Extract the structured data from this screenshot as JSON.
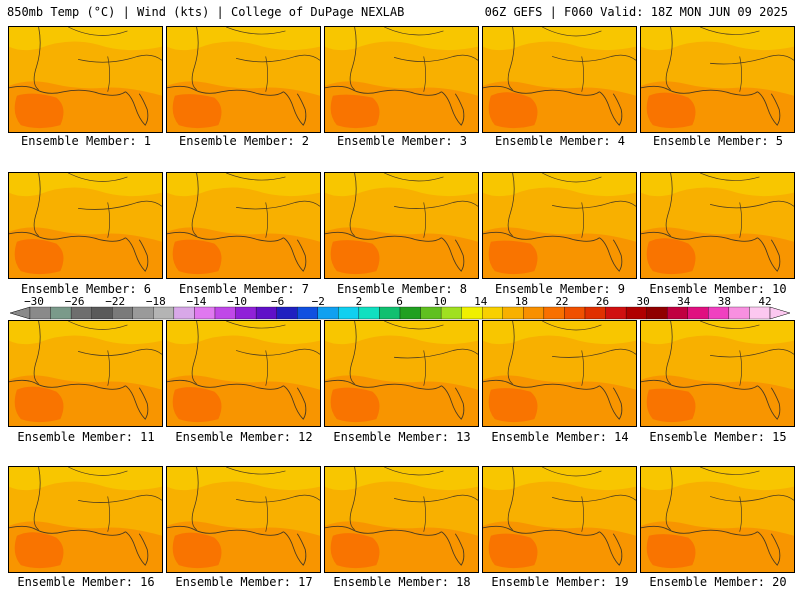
{
  "header": {
    "left": "850mb Temp (°C) | Wind (kts) | College of DuPage NEXLAB",
    "right": "06Z GEFS | F060 Valid: 18Z MON JUN 09 2025"
  },
  "colorbar": {
    "tick_labels": [
      "−30",
      "−26",
      "−22",
      "−18",
      "−14",
      "−10",
      "−6",
      "−2",
      "2",
      "6",
      "10",
      "14",
      "18",
      "22",
      "26",
      "30",
      "34",
      "38",
      "42"
    ],
    "colors": [
      "#8a8a8a",
      "#7a9a8a",
      "#6e6e6e",
      "#5a5a5a",
      "#7a7a7a",
      "#9a9a9a",
      "#b4b4b4",
      "#d8a8e8",
      "#e078f0",
      "#c048e8",
      "#9020d8",
      "#6010c8",
      "#2020c0",
      "#1050e0",
      "#10a0f0",
      "#10d0f0",
      "#10e0c0",
      "#10c070",
      "#20a020",
      "#60c020",
      "#a0e020",
      "#f0f000",
      "#f8d000",
      "#f8b000",
      "#f89000",
      "#f87000",
      "#f05000",
      "#e03000",
      "#d01010",
      "#b00000",
      "#900000",
      "#c00040",
      "#e01080",
      "#f040c0",
      "#f890e0",
      "#fcc8f0"
    ]
  },
  "members": [
    {
      "label": "Ensemble Member: 1"
    },
    {
      "label": "Ensemble Member: 2"
    },
    {
      "label": "Ensemble Member: 3"
    },
    {
      "label": "Ensemble Member: 4"
    },
    {
      "label": "Ensemble Member: 5"
    },
    {
      "label": "Ensemble Member: 6"
    },
    {
      "label": "Ensemble Member: 7"
    },
    {
      "label": "Ensemble Member: 8"
    },
    {
      "label": "Ensemble Member: 9"
    },
    {
      "label": "Ensemble Member: 10"
    },
    {
      "label": "Ensemble Member: 11"
    },
    {
      "label": "Ensemble Member: 12"
    },
    {
      "label": "Ensemble Member: 13"
    },
    {
      "label": "Ensemble Member: 14"
    },
    {
      "label": "Ensemble Member: 15"
    },
    {
      "label": "Ensemble Member: 16"
    },
    {
      "label": "Ensemble Member: 17"
    },
    {
      "label": "Ensemble Member: 18"
    },
    {
      "label": "Ensemble Member: 19"
    },
    {
      "label": "Ensemble Member: 20"
    }
  ],
  "map_colors": {
    "warm": "#f8b000",
    "mid": "#f89000",
    "hot": "#f87000",
    "pale": "#f8d000",
    "coast": "#4a3a20"
  }
}
